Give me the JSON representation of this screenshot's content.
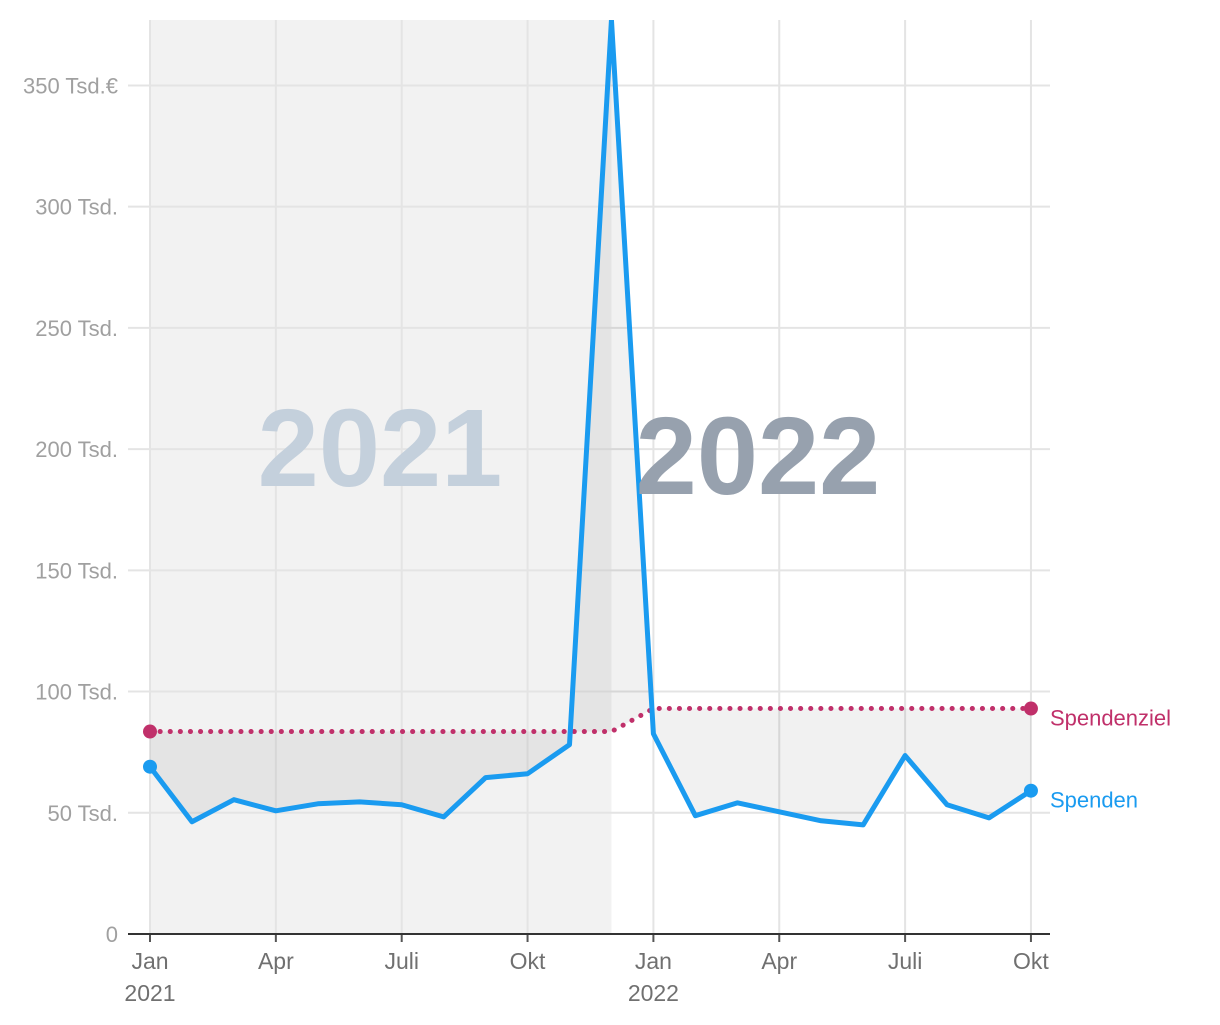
{
  "chart_data": {
    "type": "line",
    "x": [
      "2021-01",
      "2021-02",
      "2021-03",
      "2021-04",
      "2021-05",
      "2021-06",
      "2021-07",
      "2021-08",
      "2021-09",
      "2021-10",
      "2021-11",
      "2021-12",
      "2022-01",
      "2022-02",
      "2022-03",
      "2022-04",
      "2022-05",
      "2022-06",
      "2022-07",
      "2022-08",
      "2022-09",
      "2022-10"
    ],
    "series": [
      {
        "name": "Spendenziel",
        "color": "#c0306a",
        "style": "dotted",
        "values": [
          83.5,
          83.5,
          83.5,
          83.5,
          83.5,
          83.5,
          83.5,
          83.5,
          83.5,
          83.5,
          83.5,
          83.5,
          93,
          93,
          93,
          93,
          93,
          93,
          93,
          93,
          93,
          93
        ]
      },
      {
        "name": "Spenden",
        "color": "#1a9bf0",
        "style": "solid",
        "values": [
          69,
          46.3,
          55.4,
          50.8,
          53.7,
          54.5,
          53.3,
          48.3,
          64.5,
          66.1,
          78.1,
          377,
          82.6,
          48.8,
          54.1,
          50.4,
          46.7,
          45,
          73.6,
          53.3,
          47.9,
          59.1
        ]
      }
    ],
    "year_labels": [
      {
        "text": "2021",
        "color": "#c4d0dc"
      },
      {
        "text": "2022",
        "color": "#97a1ae"
      }
    ],
    "ylim": [
      0,
      377
    ],
    "yticks": [
      0,
      {
        "value": 50,
        "label": "50 Tsd."
      },
      {
        "value": 100,
        "label": "100 Tsd."
      },
      {
        "value": 150,
        "label": "150 Tsd."
      },
      {
        "value": 200,
        "label": "200 Tsd."
      },
      {
        "value": 250,
        "label": "250 Tsd."
      },
      {
        "value": 300,
        "label": "300 Tsd."
      },
      {
        "value": 350,
        "label": "350 Tsd.€"
      }
    ],
    "xticks": [
      {
        "value": "2021-01",
        "label": "Jan",
        "year": "2021"
      },
      {
        "value": "2021-04",
        "label": "Apr"
      },
      {
        "value": "2021-07",
        "label": "Juli"
      },
      {
        "value": "2021-10",
        "label": "Okt"
      },
      {
        "value": "2022-01",
        "label": "Jan",
        "year": "2022"
      },
      {
        "value": "2022-04",
        "label": "Apr"
      },
      {
        "value": "2022-07",
        "label": "Juli"
      },
      {
        "value": "2022-10",
        "label": "Okt"
      }
    ],
    "grid": true
  }
}
